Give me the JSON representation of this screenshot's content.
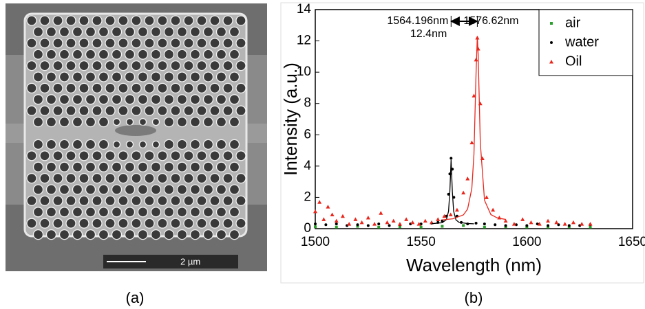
{
  "image": {
    "scale_bar": "2 µm",
    "caption": "(a)"
  },
  "chart_caption": "(b)",
  "chart_data": {
    "type": "scatter",
    "x_label": "Wavelength (nm)",
    "y_label": "Intensity (a.u.)",
    "xlim": [
      1500,
      1650
    ],
    "xticks": [
      1500,
      1550,
      1600,
      1650
    ],
    "ylim": [
      0,
      14
    ],
    "yticks": [
      0,
      2,
      4,
      6,
      8,
      10,
      12,
      14
    ],
    "legend": "upper right",
    "annotations": [
      "1564.196nm",
      "1576.62nm",
      "12.4nm"
    ],
    "series": [
      {
        "name": "air",
        "color": "#2ca02c",
        "marker": "square",
        "x": [
          1500,
          1510,
          1520,
          1530,
          1540,
          1550,
          1560,
          1570,
          1580,
          1590,
          1600,
          1610,
          1620,
          1630
        ],
        "values": [
          0.12,
          0.1,
          0.15,
          0.1,
          0.12,
          0.1,
          0.15,
          0.2,
          0.1,
          0.12,
          0.1,
          0.1,
          0.12,
          0.1
        ]
      },
      {
        "name": "water",
        "color": "#000000",
        "marker": "circle",
        "x": [
          1500,
          1505,
          1510,
          1515,
          1520,
          1525,
          1530,
          1535,
          1540,
          1545,
          1550,
          1555,
          1558,
          1560,
          1562,
          1563,
          1563.6,
          1564.2,
          1564.8,
          1565.5,
          1567,
          1569,
          1572,
          1576,
          1580,
          1585,
          1590,
          1595,
          1600,
          1605,
          1610,
          1615,
          1620,
          1625,
          1630
        ],
        "values": [
          0.3,
          0.25,
          0.3,
          0.2,
          0.25,
          0.2,
          0.3,
          0.2,
          0.25,
          0.3,
          0.3,
          0.35,
          0.4,
          0.5,
          0.8,
          2.2,
          3.5,
          4.5,
          3.8,
          2.0,
          0.8,
          0.4,
          0.3,
          0.35,
          0.3,
          0.25,
          0.2,
          0.25,
          0.2,
          0.3,
          0.2,
          0.25,
          0.2,
          0.2,
          0.25
        ]
      },
      {
        "name": "Oil",
        "color": "#e8261c",
        "marker": "triangle",
        "x": [
          1500,
          1502,
          1504,
          1506,
          1508,
          1510,
          1513,
          1516,
          1519,
          1522,
          1525,
          1528,
          1531,
          1534,
          1537,
          1540,
          1543,
          1546,
          1549,
          1552,
          1555,
          1558,
          1561,
          1564,
          1567,
          1570,
          1572,
          1574,
          1575,
          1576,
          1576.6,
          1577,
          1578,
          1579,
          1581,
          1584,
          1587,
          1590,
          1594,
          1598,
          1602,
          1606,
          1610,
          1614,
          1618,
          1622,
          1626,
          1630
        ],
        "values": [
          1.1,
          1.7,
          0.6,
          1.4,
          0.9,
          0.5,
          0.8,
          0.3,
          0.6,
          0.4,
          0.7,
          0.3,
          1.0,
          0.4,
          0.5,
          0.3,
          0.6,
          0.4,
          0.3,
          0.5,
          0.4,
          0.6,
          0.8,
          0.9,
          1.2,
          2.3,
          3.2,
          5.5,
          8.5,
          10.8,
          12.2,
          11.5,
          8.0,
          4.5,
          2.0,
          1.2,
          0.7,
          0.5,
          0.3,
          0.6,
          0.4,
          0.3,
          0.5,
          0.4,
          0.3,
          0.4,
          0.3,
          0.3
        ]
      },
      {
        "color": "#000000",
        "style": "line",
        "x": [
          1555,
          1560,
          1562,
          1563,
          1563.6,
          1564.2,
          1564.8,
          1565.4,
          1566.5,
          1568,
          1572,
          1575
        ],
        "values": [
          0.32,
          0.38,
          0.58,
          1.12,
          2.35,
          4.4,
          2.35,
          1.12,
          0.56,
          0.4,
          0.33,
          0.31
        ]
      },
      {
        "color": "#e8261c",
        "style": "line",
        "x": [
          1560,
          1565,
          1570,
          1572,
          1574,
          1575,
          1576,
          1576.6,
          1577,
          1578,
          1580,
          1583,
          1586,
          1590
        ],
        "values": [
          0.56,
          0.63,
          0.88,
          1.25,
          2.57,
          4.74,
          9.94,
          12.3,
          11.12,
          5.5,
          1.81,
          0.9,
          0.69,
          0.59
        ]
      }
    ]
  }
}
